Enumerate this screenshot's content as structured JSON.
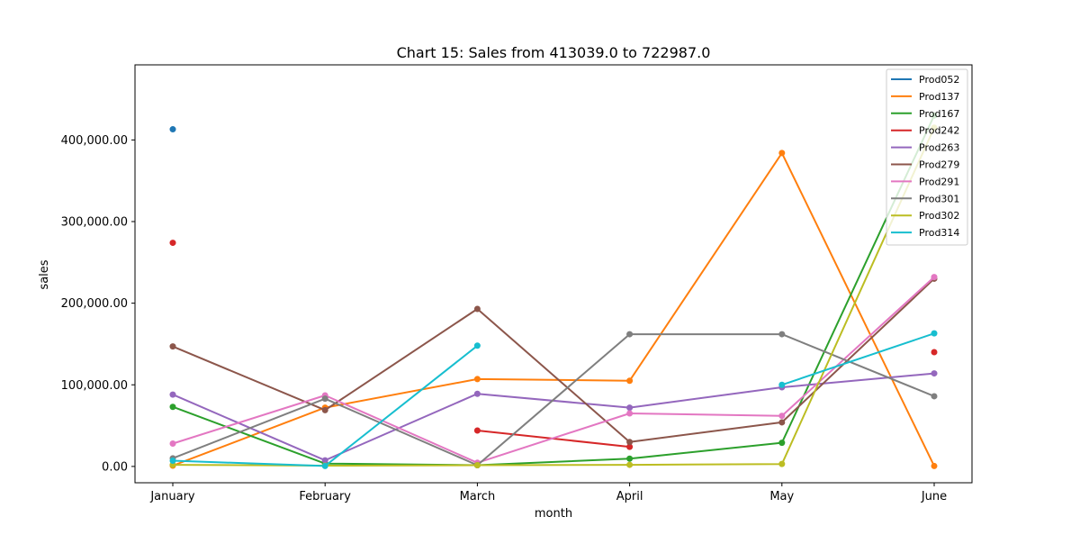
{
  "chart_data": {
    "type": "line",
    "title": "Chart 15: Sales from 413039.0 to 722987.0",
    "xlabel": "month",
    "ylabel": "sales",
    "categories": [
      "January",
      "February",
      "March",
      "April",
      "May",
      "June"
    ],
    "ylim": [
      -20000,
      492000
    ],
    "yticks": [
      0,
      100000,
      200000,
      300000,
      400000
    ],
    "ytick_labels": [
      "0.00",
      "100,000.00",
      "200,000.00",
      "300,000.00",
      "400,000.00"
    ],
    "grid": false,
    "legend_position": "top-right",
    "series": [
      {
        "name": "Prod052",
        "color": "#1f77b4",
        "values": [
          413039,
          null,
          null,
          null,
          null,
          null
        ]
      },
      {
        "name": "Prod137",
        "color": "#ff7f0e",
        "values": [
          1000,
          72000,
          107000,
          105000,
          384000,
          500
        ]
      },
      {
        "name": "Prod167",
        "color": "#2ca02c",
        "values": [
          73000,
          3500,
          1500,
          9500,
          29000,
          430000
        ]
      },
      {
        "name": "Prod242",
        "color": "#d62728",
        "values": [
          274000,
          null,
          44000,
          24000,
          null,
          140000
        ]
      },
      {
        "name": "Prod263",
        "color": "#9467bd",
        "values": [
          88000,
          7500,
          89000,
          72000,
          97000,
          114000
        ]
      },
      {
        "name": "Prod279",
        "color": "#8c564b",
        "values": [
          147000,
          69000,
          193000,
          30000,
          54000,
          230000
        ]
      },
      {
        "name": "Prod291",
        "color": "#e377c2",
        "values": [
          28000,
          87000,
          4500,
          65000,
          62000,
          232000
        ]
      },
      {
        "name": "Prod301",
        "color": "#7f7f7f",
        "values": [
          10000,
          83000,
          1500,
          162000,
          162000,
          86000
        ]
      },
      {
        "name": "Prod302",
        "color": "#bcbd22",
        "values": [
          2000,
          1000,
          1500,
          2000,
          3000,
          415000
        ]
      },
      {
        "name": "Prod314",
        "color": "#17becf",
        "values": [
          7000,
          500,
          148000,
          null,
          100000,
          163000
        ]
      }
    ]
  }
}
